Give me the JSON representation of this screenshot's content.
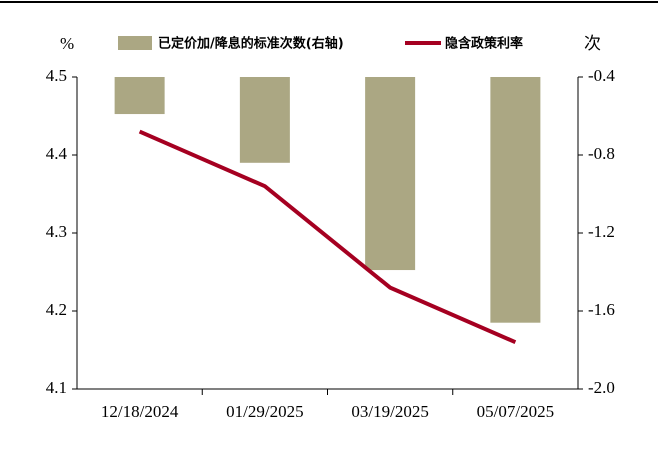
{
  "chart_data": {
    "type": "bar_line",
    "y_unit": "%",
    "y2_unit": "次",
    "categories": [
      "12/18/2024",
      "01/29/2025",
      "03/19/2025",
      "05/07/2025"
    ],
    "series": [
      {
        "name": "已定价加/降息的标准次数(右轴)",
        "type": "bar",
        "axis": "y2",
        "color": "#aba783",
        "values": [
          -0.59,
          -0.84,
          -1.39,
          -1.66
        ]
      },
      {
        "name": "隐含政策利率",
        "type": "line",
        "axis": "y",
        "color": "#a50021",
        "values": [
          4.43,
          4.36,
          4.23,
          4.16
        ]
      }
    ],
    "ylim": [
      4.1,
      4.5
    ],
    "yticks": [
      4.1,
      4.2,
      4.3,
      4.4,
      4.5
    ],
    "y2lim": [
      -2.0,
      -0.4
    ],
    "y2ticks": [
      {
        "value": -2,
        "label": "-2.0"
      },
      -1.6,
      -1.2,
      -0.8,
      -0.4
    ]
  }
}
